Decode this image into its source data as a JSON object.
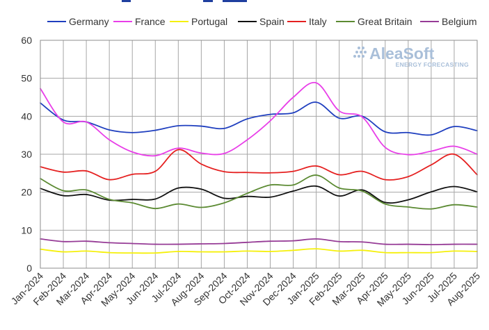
{
  "chart_data": {
    "type": "line",
    "title": "",
    "xlabel": "",
    "ylabel": "",
    "ylim": [
      0,
      60
    ],
    "yticks": [
      0,
      10,
      20,
      30,
      40,
      50,
      60
    ],
    "grid": true,
    "legend_position": "top",
    "categories": [
      "Jan-2024",
      "Feb-2024",
      "Mar-2024",
      "Apr-2024",
      "May-2024",
      "Jun-2024",
      "Jul-2024",
      "Aug-2024",
      "Sep-2024",
      "Oct-2024",
      "Nov-2024",
      "Dec-2024",
      "Jan-2025",
      "Feb-2025",
      "Mar-2025",
      "Apr-2025",
      "May-2025",
      "Jun-2025",
      "Jul-2025",
      "Aug-2025"
    ],
    "series": [
      {
        "name": "Germany",
        "color": "#1f3fbf",
        "values": [
          43.5,
          39.0,
          38.5,
          36.4,
          35.7,
          36.3,
          37.5,
          37.4,
          36.8,
          39.3,
          40.5,
          40.9,
          43.7,
          39.5,
          40.0,
          35.9,
          35.7,
          35.1,
          37.3,
          36.2
        ]
      },
      {
        "name": "France",
        "color": "#e83ee8",
        "values": [
          47.3,
          38.5,
          38.5,
          33.8,
          30.6,
          29.6,
          31.6,
          30.3,
          30.2,
          33.8,
          38.8,
          45.0,
          48.8,
          41.4,
          39.8,
          31.8,
          29.9,
          30.8,
          32.1,
          30.0
        ]
      },
      {
        "name": "Portugal",
        "color": "#f5f00a",
        "values": [
          5.0,
          4.3,
          4.5,
          4.1,
          4.0,
          4.0,
          4.4,
          4.3,
          4.3,
          4.5,
          4.4,
          4.7,
          5.1,
          4.5,
          4.7,
          4.1,
          4.1,
          4.1,
          4.5,
          4.4
        ]
      },
      {
        "name": "Spain",
        "color": "#111111",
        "values": [
          21.0,
          19.1,
          19.4,
          17.9,
          18.1,
          18.2,
          21.1,
          20.8,
          18.4,
          18.9,
          18.7,
          20.3,
          21.6,
          19.0,
          20.6,
          17.3,
          18.0,
          20.1,
          21.5,
          20.1
        ]
      },
      {
        "name": "Italy",
        "color": "#e52020",
        "values": [
          26.7,
          25.3,
          25.6,
          23.3,
          24.7,
          25.5,
          31.2,
          27.4,
          25.4,
          25.2,
          25.1,
          25.5,
          26.9,
          24.6,
          25.5,
          23.3,
          24.1,
          27.2,
          30.0,
          24.6
        ]
      },
      {
        "name": "Great Britain",
        "color": "#5b8a32",
        "values": [
          23.6,
          20.4,
          20.6,
          18.1,
          17.2,
          15.7,
          16.9,
          16.0,
          17.2,
          19.7,
          21.9,
          21.9,
          24.5,
          21.1,
          20.3,
          16.9,
          16.1,
          15.6,
          16.7,
          16.1
        ]
      },
      {
        "name": "Belgium",
        "color": "#963b96",
        "values": [
          7.7,
          7.0,
          7.1,
          6.7,
          6.5,
          6.3,
          6.3,
          6.4,
          6.5,
          6.8,
          7.1,
          7.2,
          7.7,
          7.0,
          6.9,
          6.3,
          6.3,
          6.2,
          6.3,
          6.3
        ]
      }
    ]
  },
  "logo": {
    "main": "AleaSoft",
    "sub": "ENERGY FORECASTING"
  }
}
